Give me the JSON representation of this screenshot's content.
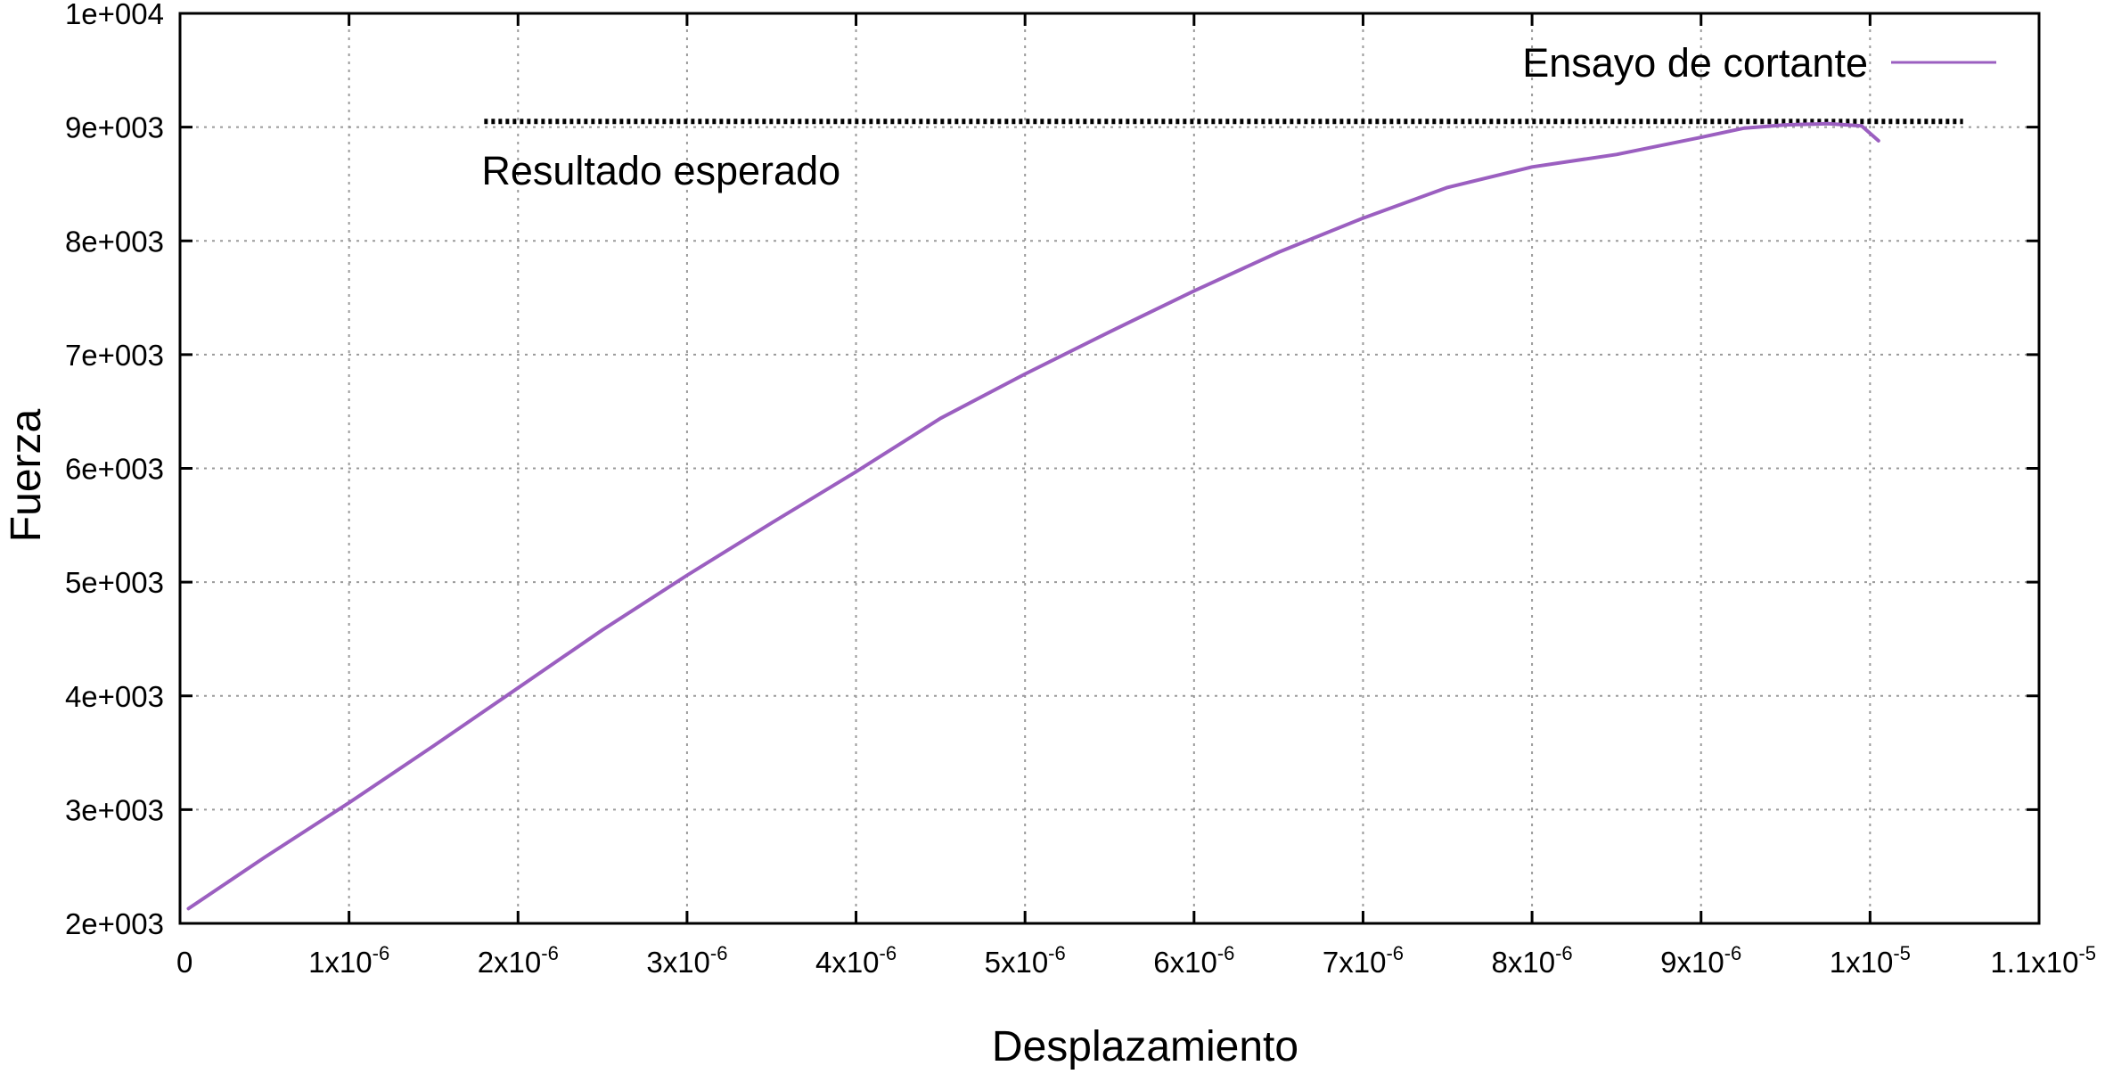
{
  "chart_data": {
    "type": "line",
    "xlabel": "Desplazamiento",
    "ylabel": "Fuerza",
    "xlim": [
      0,
      1.1e-05
    ],
    "ylim": [
      2000,
      10000
    ],
    "grid": true,
    "legend_position": "top-right",
    "x_ticks": [
      {
        "value": 0,
        "base": "0",
        "exp": ""
      },
      {
        "value": 1e-06,
        "base": "1x10",
        "exp": "-6"
      },
      {
        "value": 2e-06,
        "base": "2x10",
        "exp": "-6"
      },
      {
        "value": 3e-06,
        "base": "3x10",
        "exp": "-6"
      },
      {
        "value": 4e-06,
        "base": "4x10",
        "exp": "-6"
      },
      {
        "value": 5e-06,
        "base": "5x10",
        "exp": "-6"
      },
      {
        "value": 6e-06,
        "base": "6x10",
        "exp": "-6"
      },
      {
        "value": 7e-06,
        "base": "7x10",
        "exp": "-6"
      },
      {
        "value": 8e-06,
        "base": "8x10",
        "exp": "-6"
      },
      {
        "value": 9e-06,
        "base": "9x10",
        "exp": "-6"
      },
      {
        "value": 1e-05,
        "base": "1x10",
        "exp": "-5"
      },
      {
        "value": 1.1e-05,
        "base": "1.1x10",
        "exp": "-5"
      }
    ],
    "y_ticks": [
      {
        "value": 2000,
        "label": "2e+003"
      },
      {
        "value": 3000,
        "label": "3e+003"
      },
      {
        "value": 4000,
        "label": "4e+003"
      },
      {
        "value": 5000,
        "label": "5e+003"
      },
      {
        "value": 6000,
        "label": "6e+003"
      },
      {
        "value": 7000,
        "label": "7e+003"
      },
      {
        "value": 8000,
        "label": "8e+003"
      },
      {
        "value": 9000,
        "label": "9e+003"
      },
      {
        "value": 10000,
        "label": "1e+004"
      }
    ],
    "series": [
      {
        "name": "Ensayo de cortante",
        "color": "#9b5fc0",
        "style": "solid",
        "x": [
          5e-08,
          5e-07,
          1e-06,
          1.5e-06,
          2e-06,
          2.5e-06,
          3e-06,
          3.5e-06,
          4e-06,
          4.5e-06,
          5e-06,
          5.5e-06,
          6e-06,
          6.5e-06,
          7e-06,
          7.5e-06,
          8e-06,
          8.5e-06,
          9e-06,
          9.25e-06,
          9.5e-06,
          9.75e-06,
          9.95e-06,
          1.005e-05
        ],
        "y": [
          2130,
          2580,
          3060,
          3560,
          4070,
          4580,
          5060,
          5520,
          5970,
          6440,
          6830,
          7200,
          7560,
          7900,
          8200,
          8470,
          8650,
          8760,
          8910,
          8990,
          9020,
          9030,
          9010,
          8880
        ]
      }
    ],
    "reference_line": {
      "label": "Resultado esperado",
      "y": 9050,
      "x_range": [
        1.8e-06,
        1.055e-05
      ],
      "color": "#000000",
      "style": "dotted"
    }
  }
}
